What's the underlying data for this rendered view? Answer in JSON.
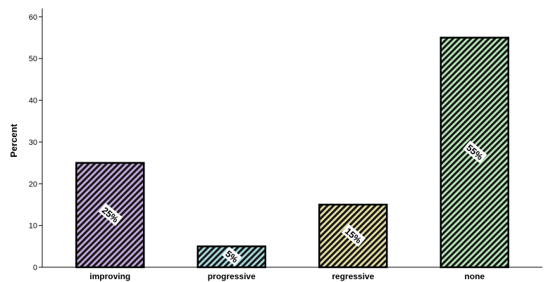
{
  "chart_data": {
    "type": "bar",
    "categories": [
      "improving",
      "progressive",
      "regressive",
      "none"
    ],
    "values": [
      25,
      5,
      15,
      55
    ],
    "data_labels": [
      "25%",
      "5%",
      "15%",
      "55%"
    ],
    "ylabel": "Percent",
    "ylim": [
      0,
      62
    ],
    "yticks": [
      "0",
      "10",
      "20",
      "30",
      "40",
      "50",
      "60"
    ],
    "grid": false,
    "bar_colors": [
      "#c8a8e0",
      "#a8dce0",
      "#e8e0a0",
      "#b8e8b8"
    ],
    "bar_pattern": "diagonal-hatch"
  }
}
